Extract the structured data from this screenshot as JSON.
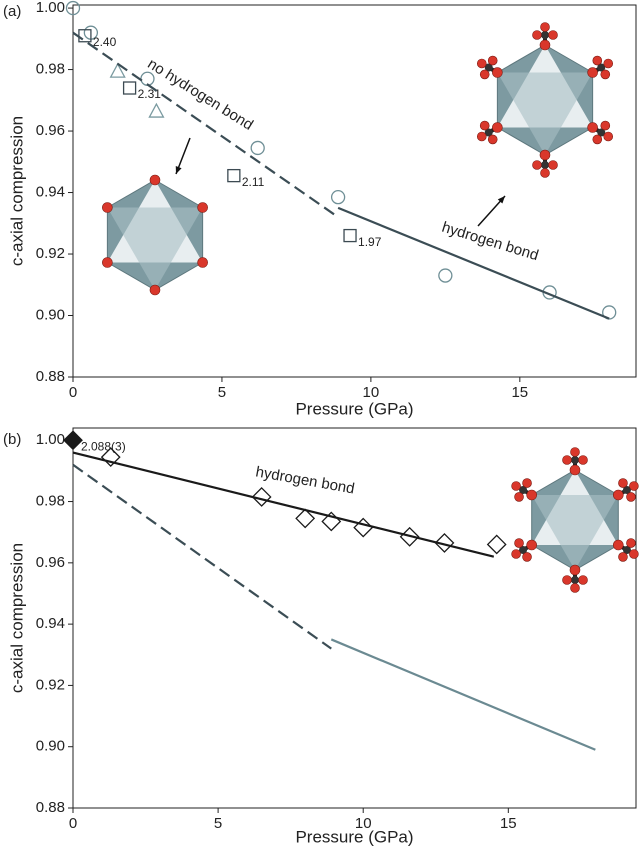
{
  "chart_data": [
    {
      "type": "scatter",
      "panel_label": "(a)",
      "x_label": "Pressure (GPa)",
      "y_label": "c-axial compression",
      "xlim": [
        0,
        18.9
      ],
      "ylim": [
        0.88,
        1.001
      ],
      "xticks": [
        0,
        5,
        10,
        15
      ],
      "yticks": [
        0.88,
        {
          "value": 0.9,
          "label": "0.90"
        },
        0.92,
        0.94,
        0.96,
        0.98,
        {
          "value": 1,
          "label": "1.00"
        }
      ],
      "annotations": [
        "no hydrogen bond",
        "hydrogen bond"
      ],
      "series": [
        {
          "marker": "circle",
          "color": "#6f8f96",
          "x": [
            0,
            0.6,
            2.5,
            6.2,
            8.9,
            12.5,
            16,
            18
          ],
          "values": [
            1.0,
            0.992,
            0.977,
            0.9545,
            0.9385,
            0.913,
            0.9075,
            0.901
          ]
        },
        {
          "marker": "square",
          "color": "#3c4a52",
          "x": [
            0.4,
            1.9,
            5.4,
            9.3
          ],
          "values": [
            0.991,
            0.974,
            0.9455,
            0.926
          ],
          "labels": [
            "2.40",
            "2.31",
            "2.11",
            "1.97"
          ]
        },
        {
          "marker": "triangle",
          "color": "#7a9aa0",
          "x": [
            1.5,
            2.8
          ],
          "values": [
            0.9795,
            0.9665
          ]
        },
        {
          "marker": "none",
          "dash": true,
          "color": "#3b4d55",
          "x": [
            0,
            8.9
          ],
          "values": [
            0.992,
            0.932
          ]
        },
        {
          "marker": "none",
          "dash": false,
          "color": "#3b4d55",
          "x": [
            8.9,
            18
          ],
          "values": [
            0.935,
            0.899
          ]
        }
      ]
    },
    {
      "type": "scatter",
      "panel_label": "(b)",
      "x_label": "Pressure (GPa)",
      "y_label": "c-axial compression",
      "xlim": [
        0,
        19.4
      ],
      "ylim": [
        0.88,
        1.004
      ],
      "xticks": [
        0,
        5,
        10,
        15
      ],
      "yticks": [
        0.88,
        {
          "value": 0.9,
          "label": "0.90"
        },
        0.92,
        0.94,
        0.96,
        0.98,
        {
          "value": 1,
          "label": "1.00"
        }
      ],
      "annotations": [
        "hydrogen bond"
      ],
      "series": [
        {
          "marker": "diamond-filled",
          "color": "#1a1a1a",
          "x": [
            0
          ],
          "values": [
            1.0
          ],
          "labels": [
            "2.088(3)"
          ]
        },
        {
          "marker": "diamond",
          "color": "#1a1a1a",
          "x": [
            1.3,
            6.5,
            8,
            8.9,
            10,
            11.6,
            12.8,
            14.6
          ],
          "values": [
            0.9945,
            0.9815,
            0.9745,
            0.9735,
            0.9715,
            0.9685,
            0.9665,
            0.966
          ]
        },
        {
          "marker": "none",
          "dash": false,
          "color": "#1a1a1a",
          "x": [
            0,
            14.5
          ],
          "values": [
            0.996,
            0.962
          ]
        },
        {
          "marker": "none",
          "dash": true,
          "color": "#3b4d55",
          "x": [
            0,
            8.9
          ],
          "values": [
            0.992,
            0.932
          ]
        },
        {
          "marker": "none",
          "dash": false,
          "color": "#6b8a92",
          "x": [
            8.9,
            18
          ],
          "values": [
            0.935,
            0.899
          ]
        }
      ]
    }
  ]
}
